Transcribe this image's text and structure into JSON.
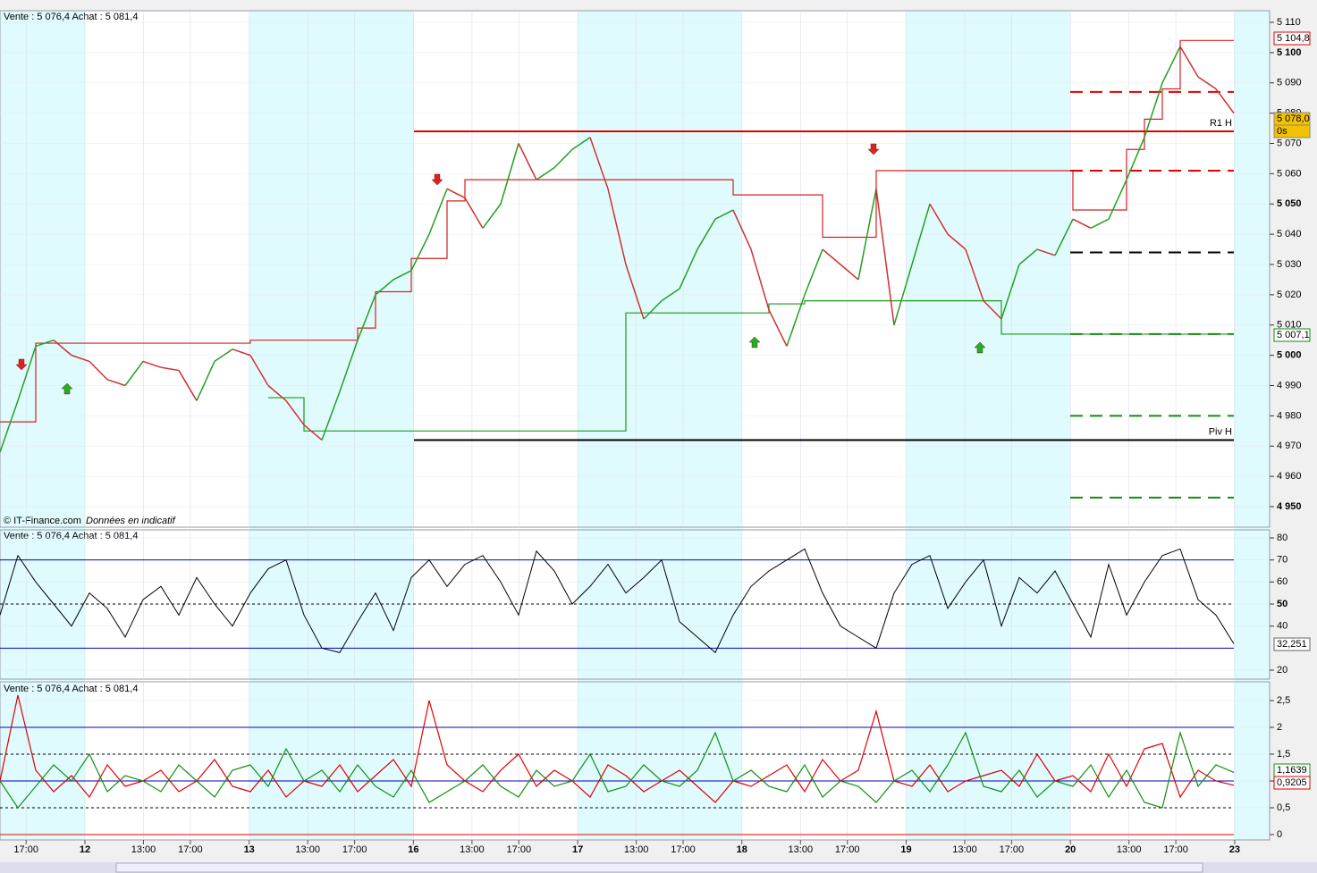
{
  "header": "Vente : 5 076,4 Achat : 5 081,4",
  "footer": {
    "source": "© IT-Finance.com",
    "note": "Données en indicatif"
  },
  "xticks": [
    "17:00",
    "12",
    "13:00",
    "17:00",
    "13",
    "13:00",
    "17:00",
    "16",
    "13:00",
    "17:00",
    "17",
    "13:00",
    "17:00",
    "18",
    "13:00",
    "17:00",
    "19",
    "13:00",
    "17:00",
    "20",
    "13:00",
    "17:00",
    "23"
  ],
  "chart_data": [
    {
      "type": "line",
      "values": [
        4968,
        4985,
        5003,
        5005,
        5000,
        4998,
        4992,
        4990,
        4998,
        4996,
        4995,
        4985,
        4998,
        5002,
        5000,
        4990,
        4985,
        4977,
        4972,
        4988,
        5005,
        5020,
        5025,
        5028,
        5040,
        5055,
        5052,
        5042,
        5050,
        5070,
        5058,
        5062,
        5068,
        5072,
        5055,
        5030,
        5012,
        5018,
        5022,
        5035,
        5045,
        5048,
        5035,
        5015,
        5003,
        5020,
        5035,
        5030,
        5025,
        5055,
        5010,
        5030,
        5050,
        5040,
        5035,
        5018,
        5012,
        5030,
        5035,
        5033,
        5045,
        5042,
        5045,
        5058,
        5072,
        5090,
        5102,
        5092,
        5088,
        5080
      ],
      "upper": [
        4978,
        4978,
        5004,
        5004,
        5004,
        5004,
        5004,
        5004,
        5004,
        5004,
        5004,
        5004,
        5004,
        5004,
        5005,
        5005,
        5005,
        5005,
        5005,
        5005,
        5009,
        5021,
        5021,
        5032,
        5032,
        5051,
        5058,
        5058,
        5058,
        5058,
        5058,
        5058,
        5058,
        5058,
        5058,
        5058,
        5058,
        5058,
        5058,
        5058,
        5058,
        5053,
        5053,
        5053,
        5053,
        5053,
        5039,
        5039,
        5039,
        5061,
        5061,
        5061,
        5061,
        5061,
        5061,
        5061,
        5061,
        5061,
        5061,
        5061,
        5048,
        5048,
        5048,
        5068,
        5078,
        5088,
        5104,
        5104,
        5104,
        5104
      ],
      "lower": [
        null,
        null,
        null,
        null,
        null,
        null,
        null,
        null,
        null,
        null,
        null,
        null,
        null,
        null,
        null,
        4986,
        4986,
        4975,
        4975,
        4975,
        4975,
        4975,
        4975,
        4975,
        4975,
        4975,
        4975,
        4975,
        4975,
        4975,
        4975,
        4975,
        4975,
        4975,
        4975,
        5014,
        5014,
        5014,
        5014,
        5014,
        5014,
        5014,
        5014,
        5017,
        5017,
        5018,
        5018,
        5018,
        5018,
        5018,
        5018,
        5018,
        5018,
        5018,
        5018,
        5018,
        5007,
        5007,
        5007,
        5007,
        5007,
        5007,
        5007,
        5007,
        5007,
        5007,
        5007,
        5007,
        5007,
        5007
      ],
      "levels": [
        {
          "label": "R1 H",
          "value": 5074
        },
        {
          "label": "Piv H",
          "value": 4972
        }
      ],
      "pivot_levels": {
        "red": [
          5087,
          5061
        ],
        "black": [
          5034
        ],
        "green": [
          5007,
          4980,
          4953
        ]
      },
      "tags": {
        "high": "5 104,8",
        "last": "5 078,0",
        "timer": "0s",
        "low": "5 007,1"
      },
      "ylim": [
        4950,
        5110
      ],
      "yticks": [
        {
          "value": 5110,
          "label": "5 110"
        },
        {
          "value": 5100,
          "label": "5 100"
        },
        {
          "value": 5090,
          "label": "5 090"
        },
        {
          "value": 5080,
          "label": "5 080"
        },
        {
          "value": 5070,
          "label": "5 070"
        },
        {
          "value": 5060,
          "label": "5 060"
        },
        {
          "value": 5050,
          "label": "5 050"
        },
        {
          "value": 5040,
          "label": "5 040"
        },
        {
          "value": 5030,
          "label": "5 030"
        },
        {
          "value": 5020,
          "label": "5 020"
        },
        {
          "value": 5010,
          "label": "5 010"
        },
        {
          "value": 5000,
          "label": "5 000"
        },
        {
          "value": 4990,
          "label": "4 990"
        },
        {
          "value": 4980,
          "label": "4 980"
        },
        {
          "value": 4970,
          "label": "4 970"
        },
        {
          "value": 4960,
          "label": "4 960"
        },
        {
          "value": 4950,
          "label": "4 950"
        }
      ]
    },
    {
      "type": "line",
      "values": [
        45,
        72,
        60,
        50,
        40,
        55,
        48,
        35,
        52,
        58,
        45,
        62,
        50,
        40,
        55,
        66,
        70,
        45,
        30,
        28,
        42,
        55,
        38,
        62,
        70,
        58,
        68,
        72,
        60,
        45,
        74,
        65,
        50,
        58,
        68,
        55,
        62,
        70,
        42,
        35,
        28,
        45,
        58,
        65,
        70,
        75,
        55,
        40,
        35,
        30,
        55,
        68,
        72,
        48,
        60,
        70,
        40,
        62,
        55,
        65,
        50,
        35,
        68,
        45,
        60,
        72,
        75,
        52,
        45,
        32
      ],
      "levels": [
        70,
        50,
        30
      ],
      "tag": "32,251",
      "ylim": [
        20,
        80
      ],
      "yticks": [
        80,
        70,
        60,
        50,
        40,
        20
      ]
    },
    {
      "type": "line",
      "series": [
        {
          "color": "#e00000",
          "values": [
            1,
            2.6,
            1.2,
            0.8,
            1.1,
            0.7,
            1.3,
            0.9,
            1,
            1.2,
            0.8,
            1,
            1.4,
            0.9,
            0.8,
            1.2,
            0.7,
            1,
            0.9,
            1.3,
            0.8,
            1.1,
            1.4,
            0.9,
            2.5,
            1.3,
            1,
            0.8,
            1.2,
            1.5,
            0.9,
            1.2,
            1,
            0.7,
            1.3,
            1.1,
            0.8,
            1,
            1.2,
            0.9,
            0.6,
            1,
            0.9,
            1.1,
            1.3,
            0.8,
            1.4,
            1,
            1.2,
            2.3,
            1,
            0.9,
            1.3,
            0.8,
            1,
            1.1,
            1.2,
            0.9,
            1.5,
            1,
            1.1,
            0.8,
            1.5,
            0.9,
            1.6,
            1.7,
            0.7,
            1.2,
            1,
            0.92
          ]
        },
        {
          "color": "#109010",
          "values": [
            1,
            0.5,
            0.9,
            1.3,
            1,
            1.5,
            0.8,
            1.1,
            1,
            0.8,
            1.3,
            1,
            0.7,
            1.2,
            1.3,
            0.9,
            1.6,
            1,
            1.2,
            0.8,
            1.3,
            0.9,
            0.7,
            1.2,
            0.6,
            0.8,
            1,
            1.3,
            0.9,
            0.7,
            1.2,
            0.9,
            1,
            1.5,
            0.8,
            0.9,
            1.3,
            1,
            0.9,
            1.2,
            1.9,
            1,
            1.2,
            0.9,
            0.8,
            1.3,
            0.7,
            1,
            0.9,
            0.6,
            1,
            1.2,
            0.8,
            1.3,
            1.9,
            0.9,
            0.8,
            1.2,
            0.7,
            1,
            0.9,
            1.3,
            0.7,
            1.2,
            0.6,
            0.5,
            1.9,
            0.9,
            1.3,
            1.16
          ]
        }
      ],
      "levels": [
        2,
        1.5,
        1,
        0.5,
        0
      ],
      "tags": [
        "1,1639",
        "0,9205"
      ],
      "ylim": [
        0,
        2.5
      ],
      "yticks": [
        {
          "value": 2.5,
          "label": "2,5"
        },
        2,
        {
          "value": 1.5,
          "label": "1,5"
        },
        1,
        {
          "value": 0.5,
          "label": "0,5"
        },
        0
      ]
    }
  ]
}
